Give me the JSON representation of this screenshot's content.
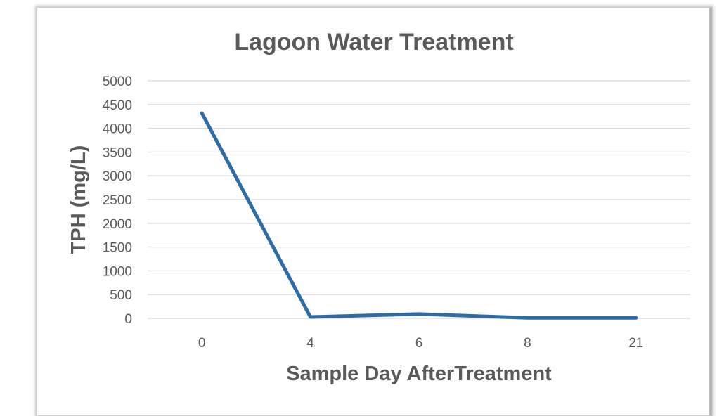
{
  "chart_data": {
    "type": "line",
    "title": "Lagoon Water Treatment",
    "xlabel": "Sample Day AfterTreatment",
    "ylabel": "TPH (mg/L)",
    "categories": [
      "0",
      "4",
      "6",
      "8",
      "21"
    ],
    "series": [
      {
        "values": [
          4320,
          30,
          90,
          10,
          10
        ]
      }
    ],
    "ylim": [
      0,
      5000
    ],
    "yticks": [
      "0",
      "500",
      "1000",
      "1500",
      "2000",
      "2500",
      "3000",
      "3500",
      "4000",
      "4500",
      "5000"
    ],
    "grid": true,
    "legend": "none",
    "colors": {
      "series": "#2e6ca8",
      "grid": "#d9d9d9",
      "text": "#595959"
    }
  }
}
